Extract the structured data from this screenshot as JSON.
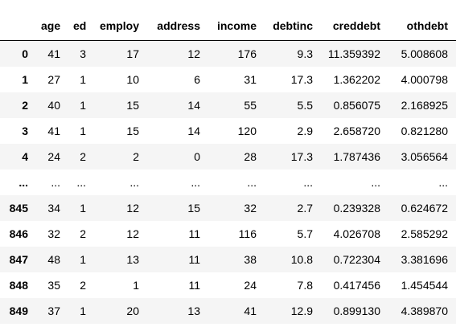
{
  "table": {
    "index_header": "",
    "columns": [
      "age",
      "ed",
      "employ",
      "address",
      "income",
      "debtinc",
      "creddebt",
      "othdebt"
    ],
    "rows": [
      {
        "index": "0",
        "cells": [
          "41",
          "3",
          "17",
          "12",
          "176",
          "9.3",
          "11.359392",
          "5.008608"
        ]
      },
      {
        "index": "1",
        "cells": [
          "27",
          "1",
          "10",
          "6",
          "31",
          "17.3",
          "1.362202",
          "4.000798"
        ]
      },
      {
        "index": "2",
        "cells": [
          "40",
          "1",
          "15",
          "14",
          "55",
          "5.5",
          "0.856075",
          "2.168925"
        ]
      },
      {
        "index": "3",
        "cells": [
          "41",
          "1",
          "15",
          "14",
          "120",
          "2.9",
          "2.658720",
          "0.821280"
        ]
      },
      {
        "index": "4",
        "cells": [
          "24",
          "2",
          "2",
          "0",
          "28",
          "17.3",
          "1.787436",
          "3.056564"
        ]
      },
      {
        "index": "...",
        "cells": [
          "...",
          "...",
          "...",
          "...",
          "...",
          "...",
          "...",
          "..."
        ]
      },
      {
        "index": "845",
        "cells": [
          "34",
          "1",
          "12",
          "15",
          "32",
          "2.7",
          "0.239328",
          "0.624672"
        ]
      },
      {
        "index": "846",
        "cells": [
          "32",
          "2",
          "12",
          "11",
          "116",
          "5.7",
          "4.026708",
          "2.585292"
        ]
      },
      {
        "index": "847",
        "cells": [
          "48",
          "1",
          "13",
          "11",
          "38",
          "10.8",
          "0.722304",
          "3.381696"
        ]
      },
      {
        "index": "848",
        "cells": [
          "35",
          "2",
          "1",
          "11",
          "24",
          "7.8",
          "0.417456",
          "1.454544"
        ]
      },
      {
        "index": "849",
        "cells": [
          "37",
          "1",
          "20",
          "13",
          "41",
          "12.9",
          "0.899130",
          "4.389870"
        ]
      }
    ]
  },
  "colors": {
    "row_stripe": "#f5f5f5",
    "header_border": "#000000",
    "text": "#000000",
    "background": "#ffffff"
  }
}
